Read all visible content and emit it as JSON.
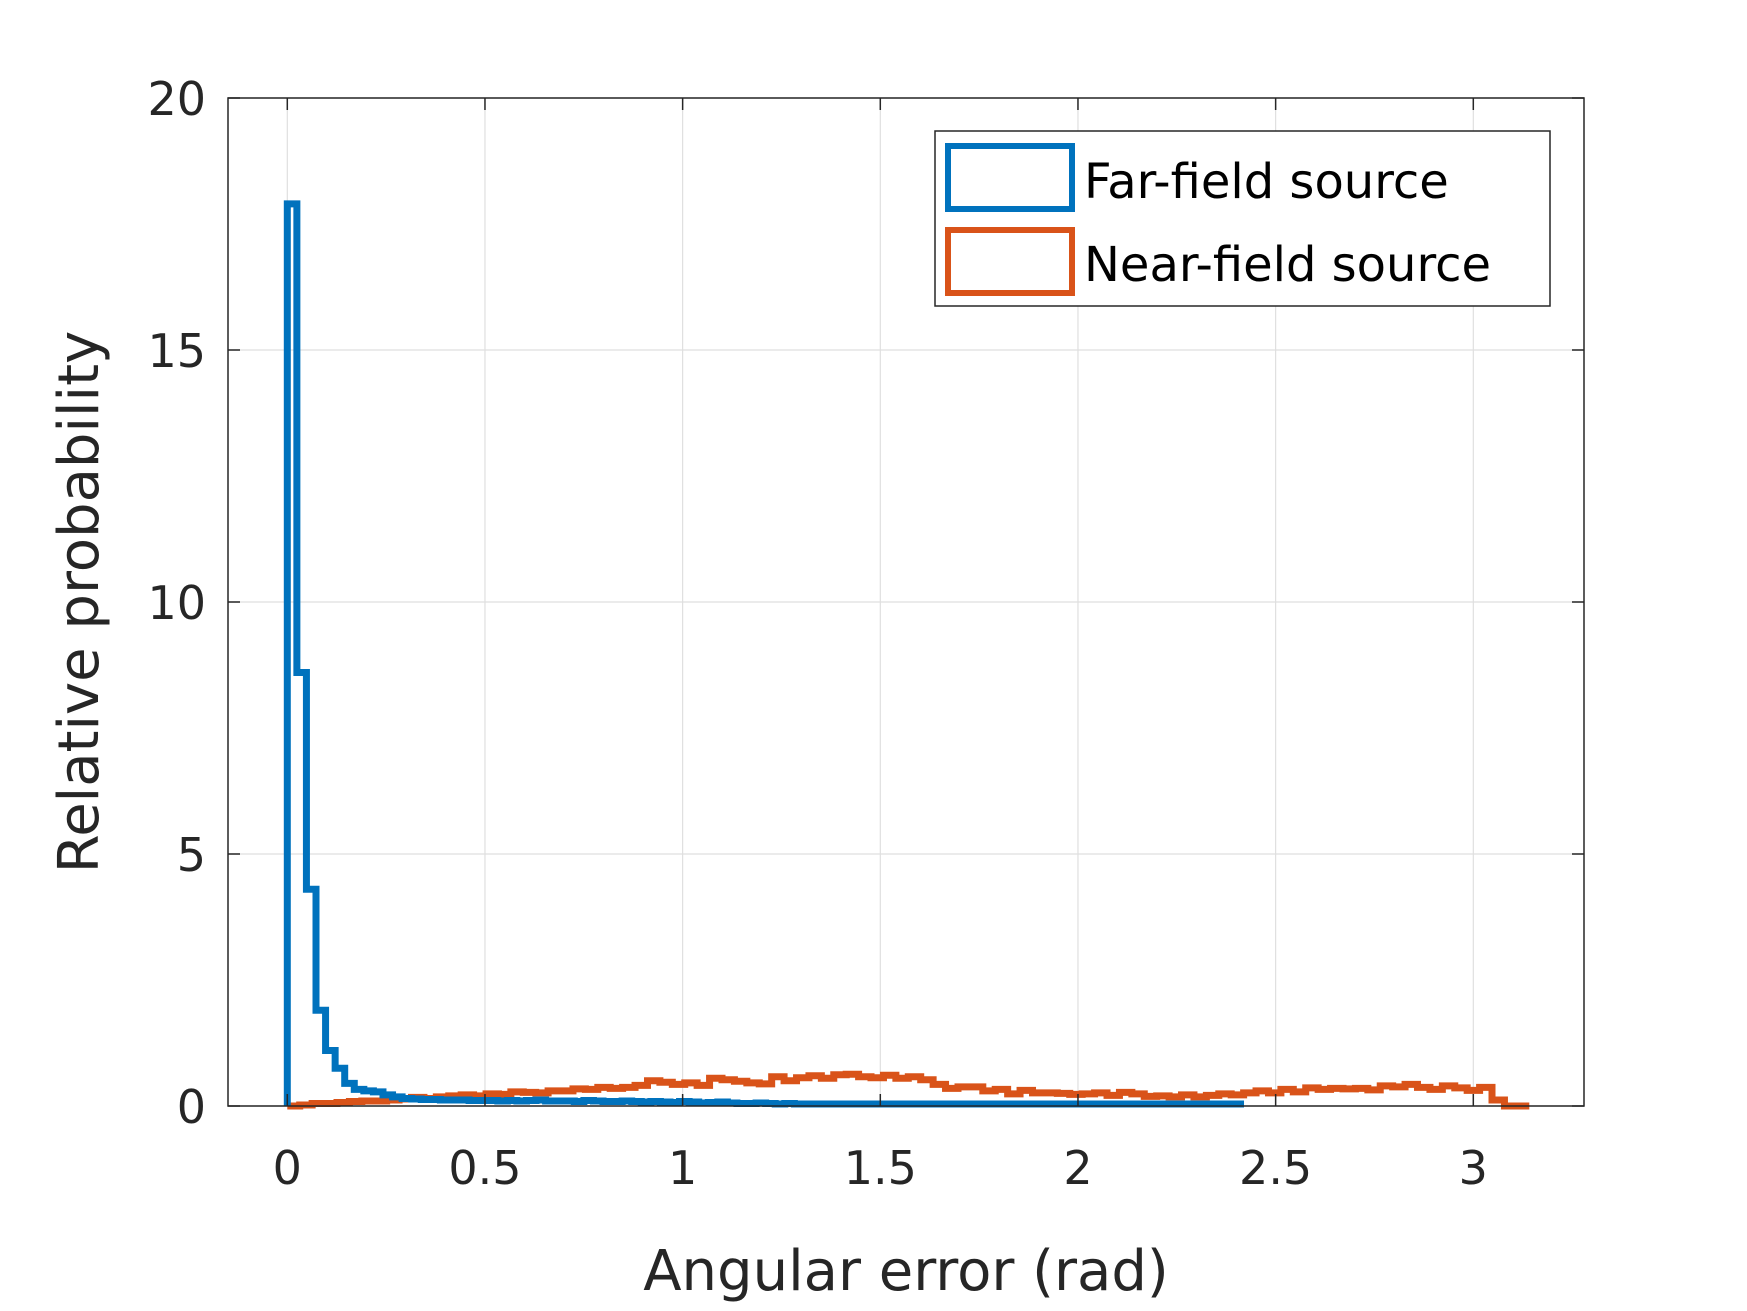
{
  "chart_data": {
    "type": "histogram",
    "title": "",
    "xlabel": "Angular error (rad)",
    "ylabel": "Relative probability",
    "xlim": [
      -0.15,
      3.28
    ],
    "ylim": [
      0,
      20
    ],
    "xticks": [
      0,
      0.5,
      1,
      1.5,
      2,
      2.5,
      3
    ],
    "xtick_labels": [
      "0",
      "0.5",
      "1",
      "1.5",
      "2",
      "2.5",
      "3"
    ],
    "yticks": [
      0,
      5,
      10,
      15,
      20
    ],
    "ytick_labels": [
      "0",
      "5",
      "10",
      "15",
      "20"
    ],
    "grid": true,
    "legend_position": "top-right",
    "series": [
      {
        "name": "Far-field source",
        "color": "#0072BD",
        "edges": [
          0,
          0.0242,
          0.0484,
          0.0726,
          0.0968,
          0.121,
          0.1452,
          0.1694,
          0.1936,
          0.2178,
          0.242,
          0.2662,
          0.2904,
          0.3146,
          0.3388,
          0.363,
          0.3872,
          0.4114,
          0.4356,
          0.4598,
          0.484,
          0.5082,
          0.5324,
          0.5566,
          0.5808,
          0.605,
          0.6292,
          0.6534,
          0.6776,
          0.7018,
          0.726,
          0.7502,
          0.7744,
          0.7986,
          0.8228,
          0.847,
          0.8712,
          0.8954,
          0.9196,
          0.9438,
          0.968,
          0.9922,
          1.0164,
          1.0406,
          1.0648,
          1.089,
          1.1132,
          1.1374,
          1.1616,
          1.1858,
          1.21,
          1.2342,
          1.2584,
          1.2826,
          1.3068,
          1.331,
          1.3552,
          1.3794,
          1.4036,
          1.4278,
          1.452,
          1.4762,
          1.5004,
          1.5246,
          1.5488,
          1.573,
          1.5972,
          1.6214,
          1.6456,
          1.6698,
          1.694,
          1.7182,
          1.7424,
          1.7666,
          1.7908,
          1.815,
          1.8392,
          1.8634,
          1.8876,
          1.9118,
          1.936,
          1.9602,
          1.9844,
          2.0086,
          2.0328,
          2.057,
          2.0812,
          2.1054,
          2.1296,
          2.1538,
          2.178,
          2.2022,
          2.2264,
          2.2506,
          2.2748,
          2.299,
          2.3232,
          2.3474,
          2.3716,
          2.3958,
          2.42
        ],
        "values": [
          17.9,
          8.6,
          4.3,
          1.9,
          1.1,
          0.75,
          0.45,
          0.33,
          0.3,
          0.28,
          0.22,
          0.18,
          0.15,
          0.14,
          0.13,
          0.13,
          0.12,
          0.12,
          0.12,
          0.11,
          0.11,
          0.11,
          0.1,
          0.11,
          0.1,
          0.11,
          0.12,
          0.1,
          0.1,
          0.1,
          0.09,
          0.11,
          0.1,
          0.09,
          0.09,
          0.1,
          0.09,
          0.08,
          0.09,
          0.08,
          0.07,
          0.09,
          0.08,
          0.06,
          0.07,
          0.08,
          0.06,
          0.05,
          0.05,
          0.06,
          0.05,
          0.04,
          0.05,
          0.04,
          0.04,
          0.04,
          0.04,
          0.04,
          0.04,
          0.04,
          0.04,
          0.04,
          0.04,
          0.04,
          0.04,
          0.04,
          0.04,
          0.04,
          0.04,
          0.04,
          0.04,
          0.04,
          0.04,
          0.04,
          0.04,
          0.04,
          0.04,
          0.04,
          0.04,
          0.04,
          0.04,
          0.04,
          0.04,
          0.04,
          0.04,
          0.04,
          0.04,
          0.04,
          0.04,
          0.04,
          0.04,
          0.04,
          0.04,
          0.04,
          0.04,
          0.04,
          0.04,
          0.04,
          0.04,
          0.04
        ]
      },
      {
        "name": "Near-field source",
        "color": "#D95319",
        "edges": [
          0.0,
          0.0314,
          0.0628,
          0.0942,
          0.1257,
          0.1571,
          0.1885,
          0.2199,
          0.2513,
          0.2827,
          0.3142,
          0.3456,
          0.377,
          0.4084,
          0.4398,
          0.4712,
          0.5027,
          0.5341,
          0.5655,
          0.5969,
          0.6283,
          0.6597,
          0.6912,
          0.7226,
          0.754,
          0.7854,
          0.8168,
          0.8482,
          0.8796,
          0.9111,
          0.9425,
          0.9739,
          1.0053,
          1.0367,
          1.0681,
          1.0996,
          1.131,
          1.1624,
          1.1938,
          1.2252,
          1.2566,
          1.2881,
          1.3195,
          1.3509,
          1.3823,
          1.4137,
          1.4451,
          1.4765,
          1.508,
          1.5394,
          1.5708,
          1.6022,
          1.6336,
          1.665,
          1.6965,
          1.7279,
          1.7593,
          1.7907,
          1.8221,
          1.8535,
          1.885,
          1.9164,
          1.9478,
          1.9792,
          2.0106,
          2.042,
          2.0735,
          2.1049,
          2.1363,
          2.1677,
          2.1991,
          2.2305,
          2.2619,
          2.2934,
          2.3248,
          2.3562,
          2.3876,
          2.419,
          2.4504,
          2.4819,
          2.5133,
          2.5447,
          2.5761,
          2.6075,
          2.6389,
          2.6704,
          2.7018,
          2.7332,
          2.7646,
          2.796,
          2.8274,
          2.8588,
          2.8903,
          2.9217,
          2.9531,
          2.9845,
          3.0159,
          3.0473,
          3.0788,
          3.1102,
          3.1416
        ],
        "values": [
          0.0,
          0.02,
          0.05,
          0.05,
          0.07,
          0.09,
          0.1,
          0.1,
          0.12,
          0.14,
          0.17,
          0.15,
          0.18,
          0.2,
          0.22,
          0.2,
          0.24,
          0.23,
          0.28,
          0.27,
          0.26,
          0.3,
          0.3,
          0.34,
          0.33,
          0.37,
          0.35,
          0.37,
          0.41,
          0.5,
          0.47,
          0.43,
          0.46,
          0.41,
          0.55,
          0.52,
          0.49,
          0.46,
          0.44,
          0.58,
          0.5,
          0.56,
          0.6,
          0.55,
          0.62,
          0.63,
          0.58,
          0.56,
          0.61,
          0.55,
          0.58,
          0.52,
          0.43,
          0.35,
          0.38,
          0.38,
          0.3,
          0.33,
          0.24,
          0.31,
          0.26,
          0.26,
          0.25,
          0.23,
          0.24,
          0.26,
          0.21,
          0.27,
          0.24,
          0.19,
          0.2,
          0.18,
          0.22,
          0.18,
          0.21,
          0.24,
          0.22,
          0.26,
          0.3,
          0.26,
          0.33,
          0.28,
          0.36,
          0.33,
          0.35,
          0.34,
          0.35,
          0.32,
          0.4,
          0.38,
          0.43,
          0.37,
          0.33,
          0.4,
          0.36,
          0.31,
          0.37,
          0.12,
          0.0,
          0.0
        ]
      }
    ]
  }
}
